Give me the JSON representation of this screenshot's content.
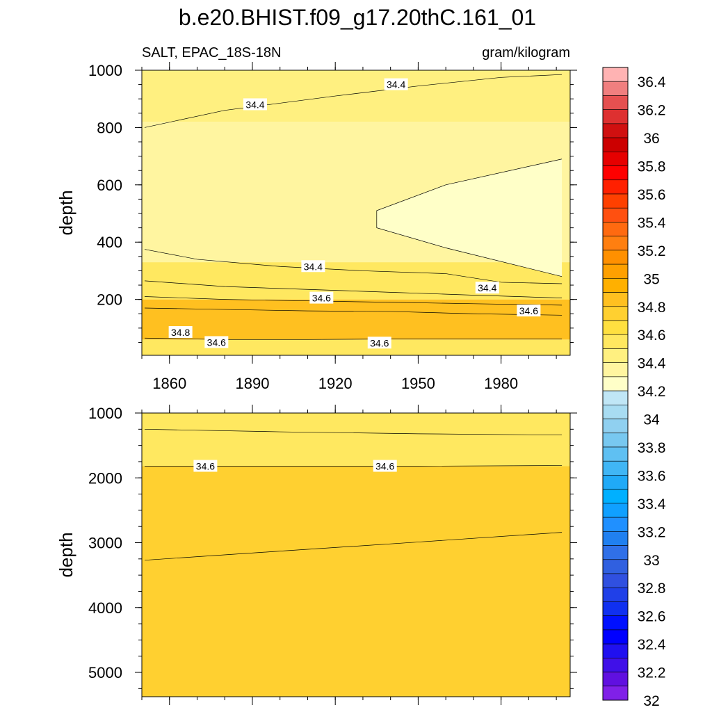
{
  "title": "b.e20.BHIST.f09_g17.20thC.161_01",
  "left_string": "SALT, EPAC_18S-18N",
  "right_string": "gram/kilogram",
  "chart_data": [
    {
      "type": "heatmap",
      "panel": "upper",
      "xlabel": "",
      "ylabel": "depth",
      "xlim": [
        1850,
        2005
      ],
      "ylim": [
        1000,
        5
      ],
      "x_tick_values": [
        1860,
        1890,
        1920,
        1950,
        1980
      ],
      "x_ticks": [
        "1860",
        "1890",
        "1920",
        "1950",
        "1980"
      ],
      "y_tick_values": [
        200,
        400,
        600,
        800,
        1000
      ],
      "y_ticks": [
        "200",
        "400",
        "600",
        "800",
        "1000"
      ],
      "fill_bands": [
        {
          "from_depth": 5,
          "to_depth": 60,
          "value": 34.5
        },
        {
          "from_depth": 60,
          "to_depth": 200,
          "value": 34.8
        },
        {
          "from_depth": 200,
          "to_depth": 330,
          "value": 34.5
        },
        {
          "from_depth": 330,
          "to_depth": 820,
          "value": 34.3
        },
        {
          "from_depth": 820,
          "to_depth": 1000,
          "value": 34.4
        }
      ],
      "fresh_core": {
        "value": 34.2,
        "year_start": 1935,
        "top_depth": [
          [
            1935,
            450
          ],
          [
            1960,
            380
          ],
          [
            2002,
            280
          ]
        ],
        "bottom_depth": [
          [
            1935,
            510
          ],
          [
            1960,
            600
          ],
          [
            2002,
            690
          ]
        ]
      },
      "contour_lines": [
        {
          "value": 34.4,
          "points": [
            [
              1851,
              800
            ],
            [
              1880,
              860
            ],
            [
              1920,
              910
            ],
            [
              1950,
              945
            ],
            [
              1980,
              975
            ],
            [
              2002,
              985
            ]
          ]
        },
        {
          "value": 34.4,
          "points": [
            [
              1851,
              375
            ],
            [
              1870,
              340
            ],
            [
              1900,
              315
            ],
            [
              1930,
              300
            ],
            [
              1960,
              290
            ],
            [
              1980,
              260
            ],
            [
              2002,
              255
            ]
          ]
        },
        {
          "value": 34.6,
          "points": [
            [
              1851,
              265
            ],
            [
              1880,
              245
            ],
            [
              1910,
              235
            ],
            [
              1940,
              225
            ],
            [
              1970,
              215
            ],
            [
              2002,
              205
            ]
          ]
        },
        {
          "value": 34.6,
          "points": [
            [
              1851,
              210
            ],
            [
              1880,
              200
            ],
            [
              1910,
              195
            ],
            [
              1940,
              190
            ],
            [
              1970,
              185
            ],
            [
              2002,
              180
            ]
          ]
        },
        {
          "value": 34.8,
          "points": [
            [
              1851,
              170
            ],
            [
              1880,
              165
            ],
            [
              1910,
              160
            ],
            [
              1940,
              158
            ],
            [
              1970,
              150
            ],
            [
              2002,
              145
            ]
          ]
        },
        {
          "value": 34.6,
          "points": [
            [
              1851,
              65
            ],
            [
              1880,
              60
            ],
            [
              1910,
              60
            ],
            [
              1940,
              62
            ],
            [
              1970,
              62
            ],
            [
              2002,
              62
            ]
          ]
        }
      ],
      "contour_labels": [
        {
          "text": "34.8",
          "x": 1864,
          "y": 85
        },
        {
          "text": "34.6",
          "x": 1877,
          "y": 50
        },
        {
          "text": "34.6",
          "x": 1936,
          "y": 48
        },
        {
          "text": "34.6",
          "x": 1990,
          "y": 160
        },
        {
          "text": "34.6",
          "x": 1915,
          "y": 205
        },
        {
          "text": "34.4",
          "x": 1975,
          "y": 240
        },
        {
          "text": "34.4",
          "x": 1912,
          "y": 315
        },
        {
          "text": "34.4",
          "x": 1891,
          "y": 880
        },
        {
          "text": "34.4",
          "x": 1942,
          "y": 950
        }
      ]
    },
    {
      "type": "heatmap",
      "panel": "lower",
      "xlabel": "",
      "ylabel": "depth",
      "xlim": [
        1850,
        2005
      ],
      "ylim": [
        1000,
        5375
      ],
      "y_tick_values": [
        1000,
        2000,
        3000,
        4000,
        5000
      ],
      "y_ticks": [
        "1000",
        "2000",
        "3000",
        "4000",
        "5000"
      ],
      "fill_bands": [
        {
          "from_depth": 1000,
          "to_depth": 1820,
          "value": 34.5
        },
        {
          "from_depth": 1820,
          "to_depth": 5375,
          "value": 34.7
        }
      ],
      "contour_lines": [
        {
          "value": 34.4,
          "points": [
            [
              1851,
              1250
            ],
            [
              1900,
              1290
            ],
            [
              1950,
              1320
            ],
            [
              2002,
              1340
            ]
          ]
        },
        {
          "value": 34.6,
          "points": [
            [
              1851,
              1820
            ],
            [
              1950,
              1820
            ],
            [
              2002,
              1810
            ]
          ]
        },
        {
          "value": 34.6,
          "points": [
            [
              1851,
              3270
            ],
            [
              1900,
              3130
            ],
            [
              1950,
              2990
            ],
            [
              2002,
              2840
            ]
          ]
        }
      ],
      "contour_labels": [
        {
          "text": "34.6",
          "x": 1873,
          "y": 1820
        },
        {
          "text": "34.6",
          "x": 1938,
          "y": 1820
        }
      ]
    }
  ],
  "colorbar": {
    "labels": [
      "36.4",
      "36.2",
      "36",
      "35.8",
      "35.6",
      "35.4",
      "35.2",
      "35",
      "34.8",
      "34.6",
      "34.4",
      "34.2",
      "34",
      "33.8",
      "33.6",
      "33.4",
      "33.2",
      "33",
      "32.8",
      "32.6",
      "32.4",
      "32.2",
      "32"
    ],
    "colors_top_to_bottom": [
      "#FFB3B3",
      "#F07F7F",
      "#E55050",
      "#DE3030",
      "#D01010",
      "#CC0000",
      "#E60000",
      "#FF0000",
      "#FF2000",
      "#FF4000",
      "#FF5010",
      "#FF6A10",
      "#FF7F10",
      "#FF9000",
      "#FFA000",
      "#FFB000",
      "#FFC020",
      "#FFD030",
      "#FFE040",
      "#FFE860",
      "#FFF080",
      "#FFF5A0",
      "#FFFFC8",
      "#C0E6F6",
      "#A8DCF2",
      "#90D0F0",
      "#78C8F0",
      "#5FC0F2",
      "#40B6F5",
      "#20AAF7",
      "#00B0FF",
      "#10A0FF",
      "#2090FF",
      "#2080F0",
      "#3070E8",
      "#3060E0",
      "#3050E0",
      "#2040E8",
      "#1030F0",
      "#0010FF",
      "#0000FF",
      "#2010F0",
      "#4010E8",
      "#6010E0",
      "#8020E8"
    ]
  }
}
